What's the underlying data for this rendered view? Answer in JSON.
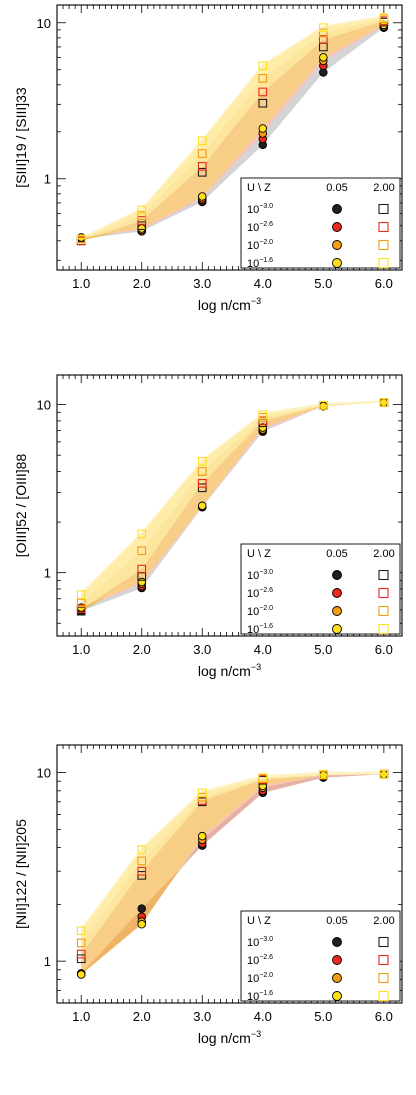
{
  "figure": {
    "legend": {
      "header_left": "U \\ Z",
      "header_z1": "0.05",
      "header_z2": "2.00",
      "rows": [
        {
          "base": "10",
          "exp": "−3.0",
          "color": "#1f1f1f",
          "square_color": "#1f1f1f"
        },
        {
          "base": "10",
          "exp": "−2.6",
          "color": "#e8291c",
          "square_color": "#e8291c"
        },
        {
          "base": "10",
          "exp": "−2.0",
          "color": "#f39c12",
          "square_color": "#f39c12"
        },
        {
          "base": "10",
          "exp": "−1.6",
          "color": "#ffe01a",
          "square_color": "#ffe01a"
        }
      ]
    },
    "band_colors": [
      "#bdbdbd",
      "#f3a38f",
      "#f5b345",
      "#fbd96a",
      "#fde99a"
    ]
  },
  "chart_data": [
    {
      "type": "scatter",
      "ylabel": "[SIII]19 / [SIII]33",
      "xlabel_base": "log n/cm",
      "xlabel_exp": "−3",
      "x": [
        1.0,
        2.0,
        3.0,
        4.0,
        5.0,
        6.0
      ],
      "x_tick_labels": [
        "1.0",
        "2.0",
        "3.0",
        "4.0",
        "5.0",
        "6.0"
      ],
      "y_tick_labels": [
        "1",
        "10"
      ],
      "xlim": [
        0.6,
        6.3
      ],
      "ylim": [
        0.26,
        13
      ],
      "y_log": true,
      "series": [
        {
          "Z": "0.05",
          "U": "10^-3.0",
          "values": [
            0.41,
            0.46,
            0.71,
            1.65,
            4.8,
            9.3
          ]
        },
        {
          "Z": "0.05",
          "U": "10^-2.6",
          "values": [
            0.41,
            0.46,
            0.73,
            1.8,
            5.3,
            9.4
          ]
        },
        {
          "Z": "0.05",
          "U": "10^-2.0",
          "values": [
            0.42,
            0.47,
            0.75,
            1.95,
            5.7,
            9.5
          ]
        },
        {
          "Z": "0.05",
          "U": "10^-1.6",
          "values": [
            0.42,
            0.48,
            0.77,
            2.1,
            6.0,
            9.7
          ]
        },
        {
          "Z": "2.00",
          "U": "10^-3.0",
          "values": [
            0.4,
            0.5,
            1.1,
            3.05,
            7.0,
            10.1
          ]
        },
        {
          "Z": "2.00",
          "U": "10^-2.6",
          "values": [
            0.4,
            0.54,
            1.2,
            3.6,
            7.8,
            10.3
          ]
        },
        {
          "Z": "2.00",
          "U": "10^-2.0",
          "values": [
            0.41,
            0.58,
            1.45,
            4.4,
            8.6,
            10.6
          ]
        },
        {
          "Z": "2.00",
          "U": "10^-1.6",
          "values": [
            0.41,
            0.63,
            1.75,
            5.3,
            9.3,
            10.8
          ]
        }
      ]
    },
    {
      "type": "scatter",
      "ylabel": "[OIII]52 / [OIII]88",
      "xlabel_base": "log n/cm",
      "xlabel_exp": "−3",
      "x": [
        1.0,
        2.0,
        3.0,
        4.0,
        5.0,
        6.0
      ],
      "x_tick_labels": [
        "1.0",
        "2.0",
        "3.0",
        "4.0",
        "5.0",
        "6.0"
      ],
      "y_tick_labels": [
        "1",
        "10"
      ],
      "xlim": [
        0.6,
        6.3
      ],
      "ylim": [
        0.42,
        15
      ],
      "y_log": true,
      "series": [
        {
          "Z": "0.05",
          "U": "10^-3.0",
          "values": [
            0.59,
            0.81,
            2.45,
            6.9,
            9.8,
            10.3
          ]
        },
        {
          "Z": "0.05",
          "U": "10^-2.6",
          "values": [
            0.6,
            0.83,
            2.45,
            7.0,
            9.8,
            10.3
          ]
        },
        {
          "Z": "0.05",
          "U": "10^-2.0",
          "values": [
            0.61,
            0.86,
            2.48,
            7.1,
            9.8,
            10.3
          ]
        },
        {
          "Z": "0.05",
          "U": "10^-1.6",
          "values": [
            0.62,
            0.88,
            2.5,
            7.3,
            9.8,
            10.3
          ]
        },
        {
          "Z": "2.00",
          "U": "10^-3.0",
          "values": [
            0.59,
            0.95,
            3.2,
            7.8,
            9.9,
            10.3
          ]
        },
        {
          "Z": "2.00",
          "U": "10^-2.6",
          "values": [
            0.61,
            1.05,
            3.4,
            8.0,
            9.9,
            10.3
          ]
        },
        {
          "Z": "2.00",
          "U": "10^-2.0",
          "values": [
            0.66,
            1.35,
            4.0,
            8.4,
            9.9,
            10.3
          ]
        },
        {
          "Z": "2.00",
          "U": "10^-1.6",
          "values": [
            0.74,
            1.7,
            4.6,
            8.7,
            9.9,
            10.3
          ]
        }
      ]
    },
    {
      "type": "scatter",
      "ylabel": "[NII]122 / [NII]205",
      "xlabel_base": "log n/cm",
      "xlabel_exp": "−3",
      "x": [
        1.0,
        2.0,
        3.0,
        4.0,
        5.0,
        6.0
      ],
      "x_tick_labels": [
        "1.0",
        "2.0",
        "3.0",
        "4.0",
        "5.0",
        "6.0"
      ],
      "y_tick_labels": [
        "1",
        "10"
      ],
      "xlim": [
        0.6,
        6.3
      ],
      "ylim": [
        0.6,
        14
      ],
      "y_log": true,
      "series": [
        {
          "Z": "0.05",
          "U": "10^-3.0",
          "values": [
            0.86,
            1.9,
            4.1,
            7.8,
            9.4,
            9.8
          ]
        },
        {
          "Z": "0.05",
          "U": "10^-2.6",
          "values": [
            0.86,
            1.72,
            4.2,
            8.0,
            9.5,
            9.8
          ]
        },
        {
          "Z": "0.05",
          "U": "10^-2.0",
          "values": [
            0.85,
            1.62,
            4.4,
            8.3,
            9.6,
            9.8
          ]
        },
        {
          "Z": "0.05",
          "U": "10^-1.6",
          "values": [
            0.85,
            1.57,
            4.6,
            8.5,
            9.7,
            9.8
          ]
        },
        {
          "Z": "2.00",
          "U": "10^-3.0",
          "values": [
            1.03,
            2.85,
            7.0,
            9.1,
            9.7,
            9.8
          ]
        },
        {
          "Z": "2.00",
          "U": "10^-2.6",
          "values": [
            1.09,
            3.0,
            7.1,
            9.2,
            9.7,
            9.8
          ]
        },
        {
          "Z": "2.00",
          "U": "10^-2.0",
          "values": [
            1.25,
            3.4,
            7.4,
            9.3,
            9.7,
            9.8
          ]
        },
        {
          "Z": "2.00",
          "U": "10^-1.6",
          "values": [
            1.45,
            3.9,
            7.8,
            9.4,
            9.8,
            9.8
          ]
        }
      ]
    }
  ]
}
